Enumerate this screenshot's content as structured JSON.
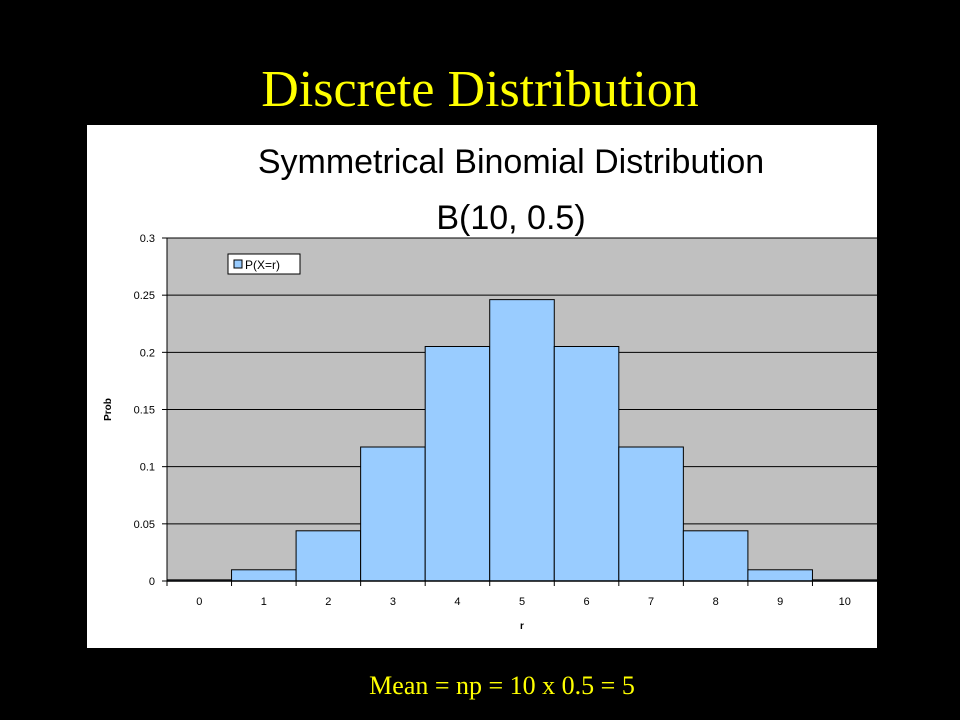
{
  "slide": {
    "title": "Discrete Distribution",
    "footer": "Mean = np = 10 x 0.5 = 5"
  },
  "colors": {
    "background": "#000000",
    "title": "#ffff00",
    "plot_area": "#c0c0c0",
    "bar_fill": "#99ccff",
    "bar_stroke": "#000000"
  },
  "chart_data": {
    "type": "bar",
    "title_lines": [
      "Symmetrical Binomial Distribution",
      "B(10, 0.5)"
    ],
    "xlabel": "r",
    "ylabel": "Prob",
    "categories": [
      "0",
      "1",
      "2",
      "3",
      "4",
      "5",
      "6",
      "7",
      "8",
      "9",
      "10"
    ],
    "series": [
      {
        "name": "P(X=r)",
        "values": [
          0.001,
          0.0098,
          0.0439,
          0.1172,
          0.2051,
          0.2461,
          0.2051,
          0.1172,
          0.0439,
          0.0098,
          0.001
        ]
      }
    ],
    "ylim": [
      0,
      0.3
    ],
    "yticks": [
      "0",
      "0.05",
      "0.1",
      "0.15",
      "0.2",
      "0.25",
      "0.3"
    ],
    "grid": true,
    "legend_position": "top-left"
  }
}
